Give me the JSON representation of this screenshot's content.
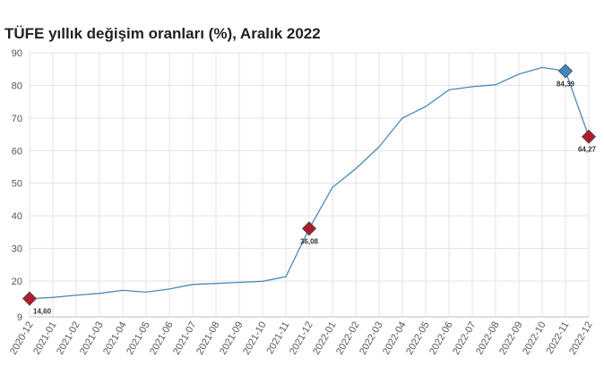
{
  "chart_data": {
    "type": "line",
    "title": "TÜFE yıllık değişim oranları (%), Aralık 2022",
    "xlabel": "",
    "ylabel": "",
    "ylim": [
      9,
      90
    ],
    "yticks": [
      9,
      20,
      30,
      40,
      50,
      60,
      70,
      80,
      90
    ],
    "grid": true,
    "categories": [
      "2020-12",
      "2021-01",
      "2021-02",
      "2021-03",
      "2021-04",
      "2021-05",
      "2021-06",
      "2021-07",
      "2021-08",
      "2021-09",
      "2021-10",
      "2021-11",
      "2021-12",
      "2022-01",
      "2022-02",
      "2022-03",
      "2022-04",
      "2022-05",
      "2022-06",
      "2022-07",
      "2022-08",
      "2022-09",
      "2022-10",
      "2022-11",
      "2022-12"
    ],
    "series": [
      {
        "values": [
          14.6,
          14.97,
          15.61,
          16.19,
          17.14,
          16.59,
          17.53,
          18.95,
          19.25,
          19.58,
          19.89,
          21.31,
          36.08,
          48.69,
          54.44,
          61.14,
          69.97,
          73.5,
          78.62,
          79.6,
          80.21,
          83.45,
          85.51,
          84.39,
          64.27
        ],
        "color": "#4a8ab8"
      }
    ],
    "highlights": [
      {
        "category": "2020-12",
        "value": 14.6,
        "label": "14,60",
        "color": "#b01c2e"
      },
      {
        "category": "2021-12",
        "value": 36.08,
        "label": "36,08",
        "color": "#b01c2e"
      },
      {
        "category": "2022-11",
        "value": 84.39,
        "label": "84,39",
        "color": "#3f86c9"
      },
      {
        "category": "2022-12",
        "value": 64.27,
        "label": "64,27",
        "color": "#b01c2e"
      }
    ]
  }
}
